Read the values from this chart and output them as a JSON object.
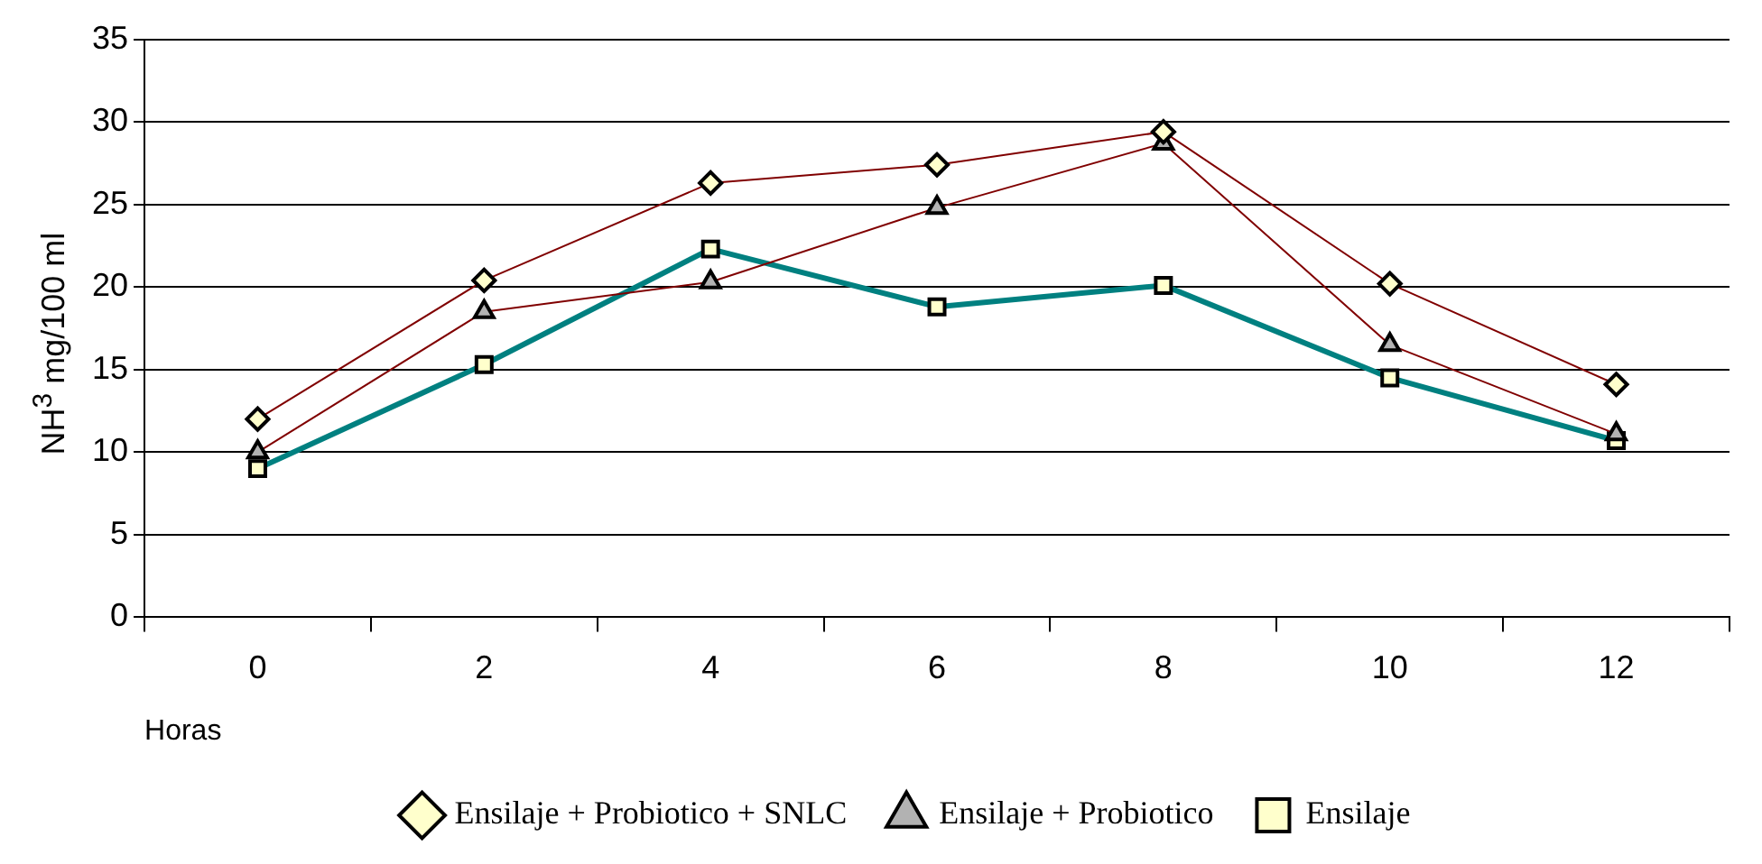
{
  "chart_data": {
    "type": "line",
    "xlabel": "Horas",
    "ylabel": "NH$^{3}$ mg/100 ml",
    "categories": [
      "0",
      "2",
      "4",
      "6",
      "8",
      "10",
      "12"
    ],
    "series": [
      {
        "name": "Ensilaje",
        "color": "#008080",
        "marker": "square",
        "values": [
          9.0,
          15.3,
          22.3,
          18.8,
          20.1,
          14.5,
          10.7
        ]
      },
      {
        "name": "Ensilaje + Probiotico",
        "color": "#800000",
        "marker": "triangle",
        "values": [
          10.0,
          18.5,
          20.3,
          24.8,
          28.7,
          16.5,
          11.1
        ]
      },
      {
        "name": "Ensilaje + Probiotico + SNLC",
        "color": "#800000",
        "marker": "diamond",
        "values": [
          12.0,
          20.4,
          26.3,
          27.4,
          29.4,
          20.2,
          14.1
        ]
      }
    ],
    "ylim": [
      0,
      35
    ],
    "yticks": [
      0,
      5,
      10,
      15,
      20,
      25,
      30,
      35
    ],
    "grid": "y",
    "legend": "bottom"
  }
}
